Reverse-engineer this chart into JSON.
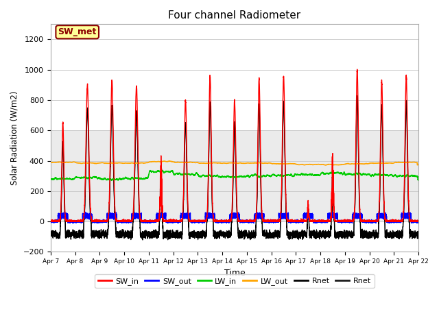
{
  "title": "Four channel Radiometer",
  "xlabel": "Time",
  "ylabel": "Solar Radiation (W/m2)",
  "ylim": [
    -200,
    1300
  ],
  "xlim": [
    0,
    15
  ],
  "tick_labels": [
    "Apr 7",
    "Apr 8",
    "Apr 9",
    "Apr 10",
    "Apr 11",
    "Apr 12",
    "Apr 13",
    "Apr 14",
    "Apr 15",
    "Apr 16",
    "Apr 17",
    "Apr 18",
    "Apr 19",
    "Apr 20",
    "Apr 21",
    "Apr 22"
  ],
  "yticks": [
    -200,
    0,
    200,
    400,
    600,
    800,
    1000,
    1200
  ],
  "colors": {
    "SW_in": "#ff0000",
    "SW_out": "#0000ff",
    "LW_in": "#00cc00",
    "LW_out": "#ffa500",
    "Rnet1": "#000000",
    "Rnet2": "#1a1a1a"
  },
  "annotation_text": "SW_met",
  "annotation_bg": "#ffff99",
  "annotation_edge": "#8b0000",
  "shading_color": "#ebebeb",
  "shading_ymin": 0,
  "shading_ymax": 600,
  "background_color": "#ffffff",
  "legend_labels": [
    "SW_in",
    "SW_out",
    "LW_in",
    "LW_out",
    "Rnet",
    "Rnet"
  ]
}
